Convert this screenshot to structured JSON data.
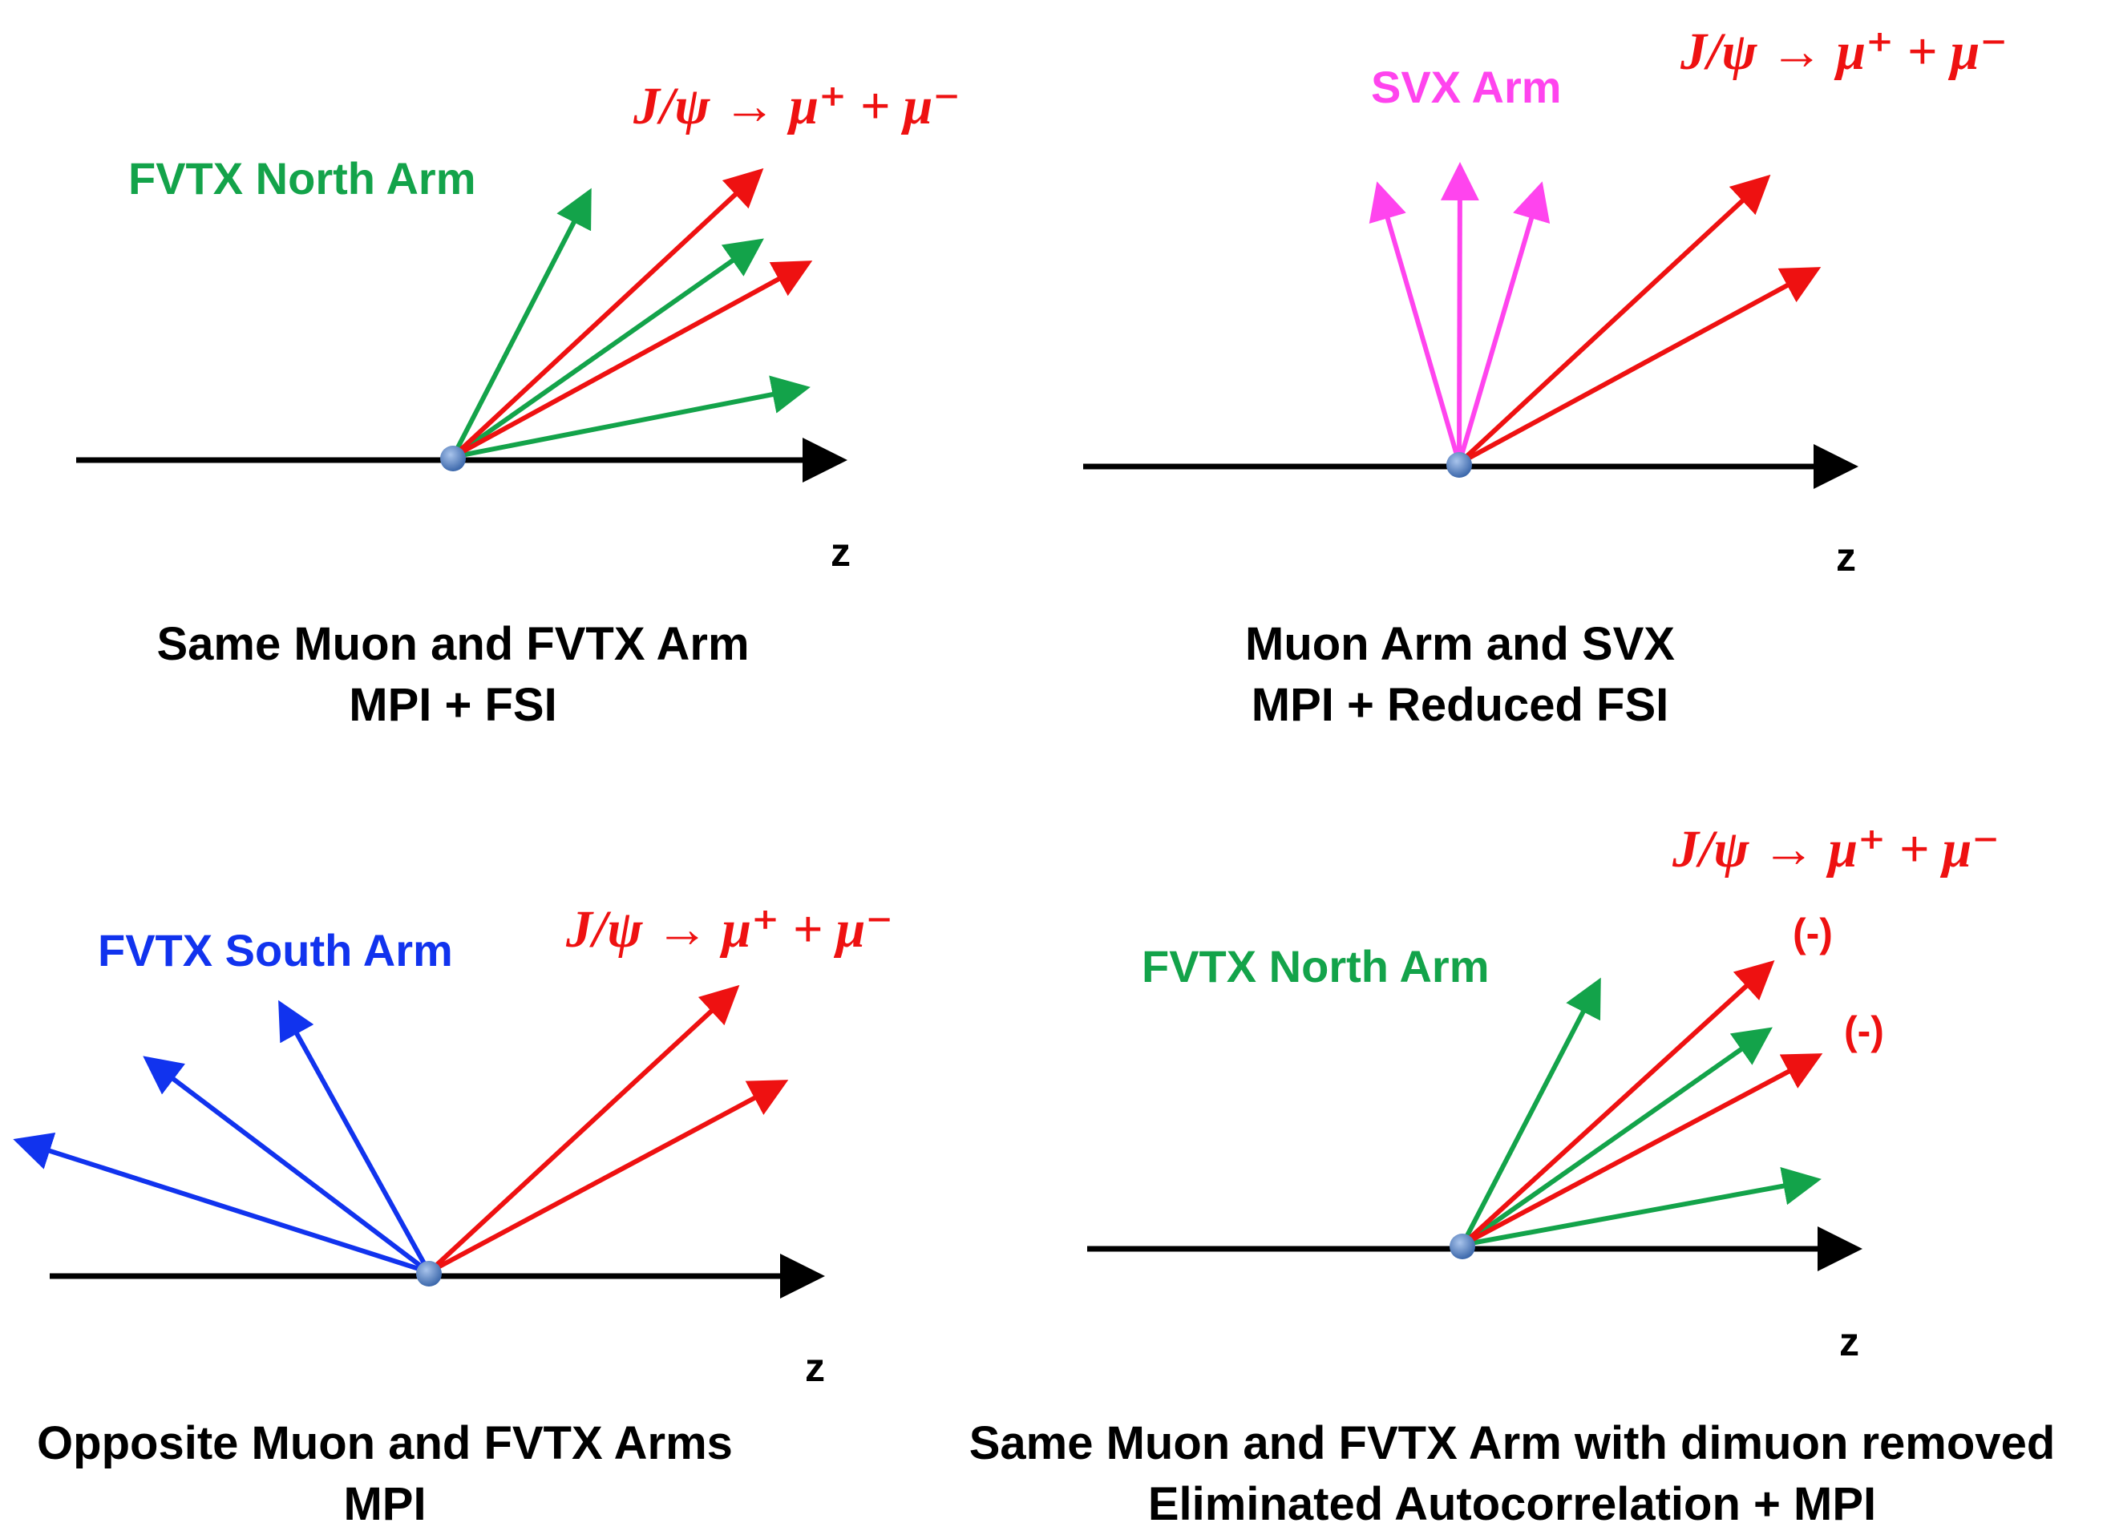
{
  "colors": {
    "red": "#ee1111",
    "green": "#13a34a",
    "magenta": "#ff44ee",
    "blue": "#1133ee",
    "axis": "#000000",
    "vertex": "#5b86c7"
  },
  "panels": [
    {
      "id": "p1",
      "arm_label": "FVTX North Arm",
      "arm_color": "green",
      "decay_label": "J/ψ → μ⁺ +  μ⁻",
      "axis_label": "z",
      "caption_line1": "Same Muon and FVTX Arm",
      "caption_line2": "MPI + FSI"
    },
    {
      "id": "p2",
      "arm_label": "SVX Arm",
      "arm_color": "magenta",
      "decay_label": "J/ψ → μ⁺ +  μ⁻",
      "axis_label": "z",
      "caption_line1": "Muon Arm and SVX",
      "caption_line2": "MPI + Reduced FSI"
    },
    {
      "id": "p3",
      "arm_label": "FVTX South Arm",
      "arm_color": "blue",
      "decay_label": "J/ψ → μ⁺ +  μ⁻",
      "axis_label": "z",
      "caption_line1": "Opposite Muon and FVTX Arms",
      "caption_line2": "MPI"
    },
    {
      "id": "p4",
      "arm_label": "FVTX North Arm",
      "arm_color": "green",
      "decay_label": "J/ψ → μ⁺ +  μ⁻",
      "axis_label": "z",
      "caption_line1": "Same Muon and FVTX Arm with dimuon removed",
      "caption_line2": "Eliminated Autocorrelation + MPI",
      "removed_marker_1": "(-)",
      "removed_marker_2": "(-)"
    }
  ]
}
